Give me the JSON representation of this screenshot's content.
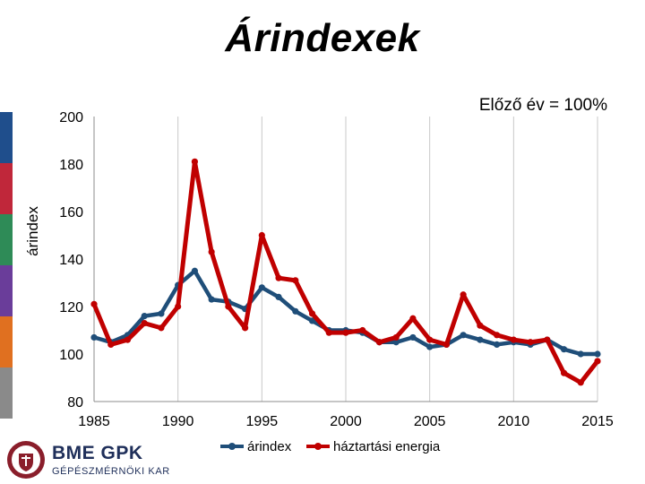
{
  "slide": {
    "title": "Árindexek"
  },
  "branding": {
    "logo_main": "BME GPK",
    "logo_sub": "GÉPÉSZMÉRNÖKI KAR",
    "sidebar_colors": [
      "#1f4e8c",
      "#c0273a",
      "#2e8b57",
      "#6a3d9a",
      "#e07020",
      "#8a8a8a"
    ]
  },
  "chart_data": {
    "type": "line",
    "annotation": "Előző év = 100%",
    "xlabel": "",
    "ylabel": "árindex",
    "xlim": [
      1985,
      2015
    ],
    "ylim": [
      80,
      200
    ],
    "x_ticks": [
      1985,
      1990,
      1995,
      2000,
      2005,
      2010,
      2015
    ],
    "y_ticks": [
      80,
      100,
      120,
      140,
      160,
      180,
      200
    ],
    "grid": "vertical",
    "legend_position": "bottom",
    "x": [
      1985,
      1986,
      1987,
      1988,
      1989,
      1990,
      1991,
      1992,
      1993,
      1994,
      1995,
      1996,
      1997,
      1998,
      1999,
      2000,
      2001,
      2002,
      2003,
      2004,
      2005,
      2006,
      2007,
      2008,
      2009,
      2010,
      2011,
      2012,
      2013,
      2014,
      2015
    ],
    "series": [
      {
        "name": "árindex",
        "color": "#1f4e79",
        "values": [
          107,
          105,
          108,
          116,
          117,
          129,
          135,
          123,
          122,
          119,
          128,
          124,
          118,
          114,
          110,
          110,
          109,
          105,
          105,
          107,
          103,
          104,
          108,
          106,
          104,
          105,
          104,
          106,
          102,
          100,
          100
        ]
      },
      {
        "name": "háztartási energia",
        "color": "#c00000",
        "values": [
          121,
          104,
          106,
          113,
          111,
          120,
          181,
          143,
          120,
          111,
          150,
          132,
          131,
          117,
          109,
          109,
          110,
          105,
          107,
          115,
          106,
          104,
          125,
          112,
          108,
          106,
          105,
          106,
          92,
          88,
          97
        ]
      }
    ]
  }
}
